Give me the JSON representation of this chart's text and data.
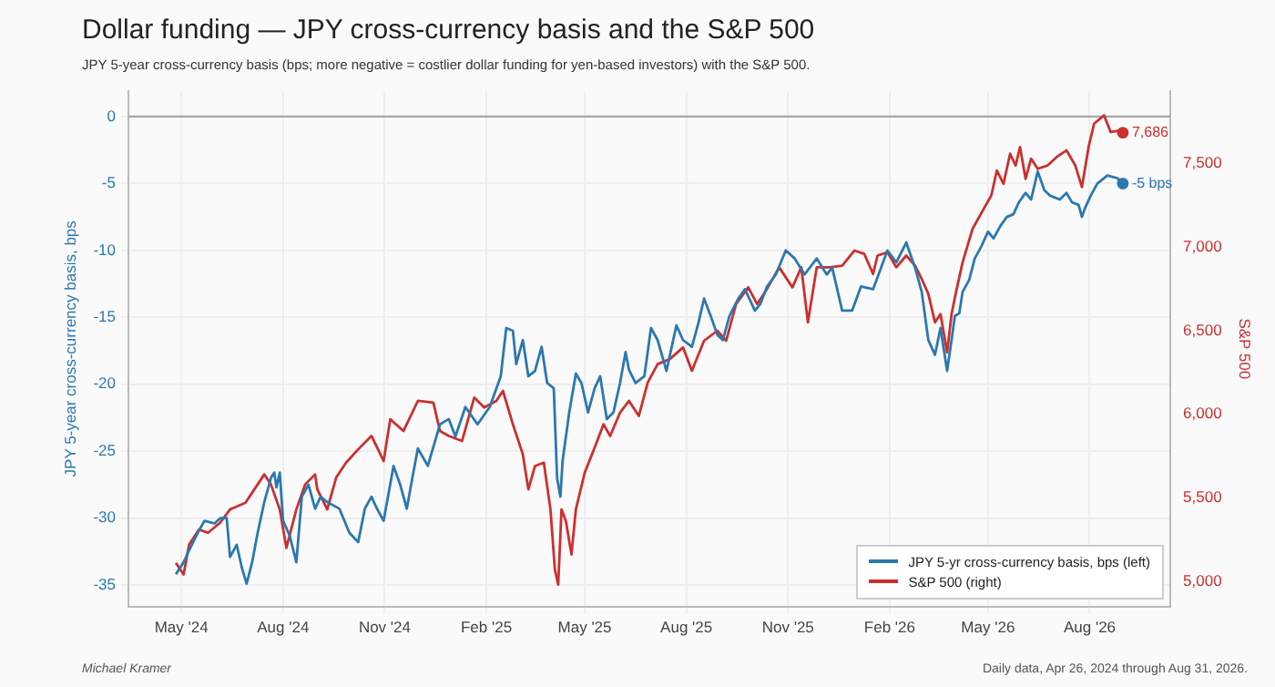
{
  "chart_data": {
    "type": "line",
    "title": "Dollar funding — JPY cross-currency basis and the S&P 500",
    "subtitle": "JPY 5-year cross-currency basis (bps; more negative = costlier dollar funding for yen-based investors) with the S&P 500.",
    "ylabel": "JPY 5-year cross-currency basis, bps",
    "y2label": "S&P 500",
    "annotations": [
      "Michael Kramer",
      "Daily data, Apr 26, 2024 through Aug 31, 2026."
    ],
    "xlim": [
      "2024-03-14",
      "2026-10-13"
    ],
    "xticks": [
      {
        "value": "2024-05-01",
        "label": "May '24"
      },
      {
        "value": "2024-08-01",
        "label": "Aug '24"
      },
      {
        "value": "2024-11-01",
        "label": "Nov '24"
      },
      {
        "value": "2025-02-01",
        "label": "Feb '25"
      },
      {
        "value": "2025-05-01",
        "label": "May '25"
      },
      {
        "value": "2025-08-01",
        "label": "Aug '25"
      },
      {
        "value": "2025-11-01",
        "label": "Nov '25"
      },
      {
        "value": "2026-02-01",
        "label": "Feb '26"
      },
      {
        "value": "2026-05-01",
        "label": "May '26"
      },
      {
        "value": "2026-08-01",
        "label": "Aug '26"
      }
    ],
    "ylim": [
      -36.6,
      1.9
    ],
    "yticks": [
      0,
      -5,
      -10,
      -15,
      -20,
      -25,
      -30,
      -35
    ],
    "y2lim": [
      4849,
      7935
    ],
    "y2ticks": [
      {
        "value": 5000,
        "label": "5,000"
      },
      {
        "value": 5500,
        "label": "5,500"
      },
      {
        "value": 6000,
        "label": "6,000"
      },
      {
        "value": 6500,
        "label": "6,500"
      },
      {
        "value": 7000,
        "label": "7,000"
      },
      {
        "value": 7500,
        "label": "7,500"
      }
    ],
    "ref_lines": [
      {
        "axis": "y",
        "value": 0,
        "color": "#a6a6a6"
      }
    ],
    "grid": true,
    "legend": "bottom right",
    "marker": "none",
    "line_style": "solid",
    "series": [
      {
        "name": "JPY 5-yr cross-currency basis, bps (left)",
        "color": "#2b78b0",
        "x": [
          "2024-04-26",
          "2024-05-03",
          "2024-05-08",
          "2024-05-17",
          "2024-05-22",
          "2024-05-31",
          "2024-06-05",
          "2024-06-11",
          "2024-06-14",
          "2024-06-20",
          "2024-06-25",
          "2024-06-29",
          "2024-07-04",
          "2024-07-09",
          "2024-07-15",
          "2024-07-21",
          "2024-07-24",
          "2024-07-26",
          "2024-07-29",
          "2024-08-01",
          "2024-08-07",
          "2024-08-13",
          "2024-08-18",
          "2024-08-24",
          "2024-08-30",
          "2024-09-04",
          "2024-09-10",
          "2024-09-21",
          "2024-09-30",
          "2024-10-08",
          "2024-10-14",
          "2024-10-20",
          "2024-10-25",
          "2024-10-31",
          "2024-11-09",
          "2024-11-15",
          "2024-11-21",
          "2024-11-26",
          "2024-12-01",
          "2024-12-10",
          "2024-12-21",
          "2024-12-29",
          "2025-01-04",
          "2025-01-13",
          "2025-01-24",
          "2025-02-04",
          "2025-02-14",
          "2025-02-19",
          "2025-02-25",
          "2025-02-28",
          "2025-03-06",
          "2025-03-11",
          "2025-03-17",
          "2025-03-23",
          "2025-03-28",
          "2025-04-03",
          "2025-04-06",
          "2025-04-09",
          "2025-04-11",
          "2025-04-17",
          "2025-04-23",
          "2025-04-28",
          "2025-05-04",
          "2025-05-10",
          "2025-05-15",
          "2025-05-21",
          "2025-05-27",
          "2025-06-02",
          "2025-06-07",
          "2025-06-10",
          "2025-06-16",
          "2025-06-24",
          "2025-06-30",
          "2025-07-06",
          "2025-07-14",
          "2025-07-23",
          "2025-07-29",
          "2025-08-06",
          "2025-08-12",
          "2025-08-17",
          "2025-08-23",
          "2025-08-29",
          "2025-09-03",
          "2025-09-09",
          "2025-09-17",
          "2025-09-23",
          "2025-10-02",
          "2025-10-07",
          "2025-10-13",
          "2025-10-21",
          "2025-10-30",
          "2025-11-07",
          "2025-11-16",
          "2025-11-27",
          "2025-12-06",
          "2025-12-11",
          "2025-12-20",
          "2025-12-29",
          "2026-01-06",
          "2026-01-17",
          "2026-01-30",
          "2026-02-07",
          "2026-02-16",
          "2026-02-24",
          "2026-03-02",
          "2026-03-08",
          "2026-03-14",
          "2026-03-19",
          "2026-03-25",
          "2026-03-29",
          "2026-04-01",
          "2026-04-05",
          "2026-04-08",
          "2026-04-14",
          "2026-04-19",
          "2026-04-25",
          "2026-05-01",
          "2026-05-06",
          "2026-05-12",
          "2026-05-18",
          "2026-05-24",
          "2026-05-29",
          "2026-06-04",
          "2026-06-09",
          "2026-06-15",
          "2026-06-21",
          "2026-06-26",
          "2026-07-05",
          "2026-07-11",
          "2026-07-16",
          "2026-07-22",
          "2026-07-25",
          "2026-07-28",
          "2026-08-02",
          "2026-08-08",
          "2026-08-17",
          "2026-08-26",
          "2026-08-31"
        ],
        "values": [
          -34.2,
          -33.3,
          -32.4,
          -30.9,
          -30.2,
          -30.4,
          -30.0,
          -30.0,
          -32.9,
          -32.0,
          -33.8,
          -34.9,
          -33.3,
          -31.1,
          -28.8,
          -27.0,
          -26.6,
          -27.7,
          -26.6,
          -30.2,
          -31.3,
          -33.3,
          -28.4,
          -27.5,
          -29.3,
          -28.4,
          -28.8,
          -29.3,
          -31.1,
          -31.8,
          -29.3,
          -28.4,
          -29.3,
          -30.2,
          -26.1,
          -27.5,
          -29.3,
          -27.0,
          -24.8,
          -26.1,
          -23.0,
          -22.6,
          -23.9,
          -21.7,
          -23.0,
          -21.7,
          -19.4,
          -15.8,
          -16.0,
          -18.5,
          -16.7,
          -19.4,
          -19.0,
          -17.2,
          -19.9,
          -20.3,
          -27.0,
          -28.4,
          -25.7,
          -22.1,
          -19.2,
          -19.9,
          -22.1,
          -20.3,
          -19.4,
          -22.6,
          -22.1,
          -19.9,
          -17.6,
          -18.9,
          -19.9,
          -19.4,
          -15.8,
          -16.7,
          -19.0,
          -15.6,
          -16.7,
          -17.2,
          -15.4,
          -13.6,
          -14.9,
          -16.3,
          -16.7,
          -14.9,
          -13.6,
          -12.9,
          -14.5,
          -14.0,
          -12.7,
          -11.8,
          -10.0,
          -10.6,
          -11.8,
          -10.6,
          -11.8,
          -11.3,
          -14.5,
          -14.5,
          -12.7,
          -12.9,
          -10.0,
          -10.9,
          -9.4,
          -11.3,
          -13.1,
          -16.7,
          -17.8,
          -15.8,
          -19.0,
          -16.7,
          -14.9,
          -14.7,
          -13.1,
          -12.2,
          -10.6,
          -9.7,
          -8.6,
          -9.1,
          -8.2,
          -7.5,
          -7.3,
          -6.4,
          -5.7,
          -6.2,
          -4.1,
          -5.5,
          -5.9,
          -6.2,
          -5.7,
          -6.4,
          -6.6,
          -7.5,
          -6.8,
          -5.9,
          -5.0,
          -4.4,
          -4.6,
          -5
        ],
        "value_labels": [
          null,
          null,
          null,
          null,
          null,
          null,
          null,
          null,
          null,
          null,
          null,
          null,
          null,
          null,
          null,
          null,
          null,
          null,
          null,
          null,
          null,
          null,
          null,
          null,
          null,
          null,
          null,
          null,
          null,
          null,
          null,
          null,
          null,
          null,
          null,
          null,
          null,
          null,
          null,
          null,
          null,
          null,
          null,
          null,
          null,
          null,
          null,
          null,
          null,
          null,
          null,
          null,
          null,
          null,
          null,
          null,
          null,
          null,
          null,
          null,
          null,
          null,
          null,
          null,
          null,
          null,
          null,
          null,
          null,
          null,
          null,
          null,
          null,
          null,
          null,
          null,
          null,
          null,
          null,
          null,
          null,
          null,
          null,
          null,
          null,
          null,
          null,
          null,
          null,
          null,
          null,
          null,
          null,
          null,
          null,
          null,
          null,
          null,
          null,
          null,
          null,
          null,
          null,
          null,
          null,
          null,
          null,
          null,
          null,
          null,
          null,
          null,
          null,
          null,
          null,
          null,
          null,
          null,
          null,
          null,
          null,
          null,
          null,
          null,
          null,
          null,
          null,
          null,
          null,
          null,
          null,
          null,
          null,
          null,
          null,
          null,
          null,
          "-5 bps"
        ]
      },
      {
        "name": "S&P 500 (right)",
        "color": "#cc2f2f",
        "axis": "y2",
        "x": [
          "2024-04-26",
          "2024-05-03",
          "2024-05-08",
          "2024-05-17",
          "2024-05-25",
          "2024-06-05",
          "2024-06-14",
          "2024-06-28",
          "2024-07-09",
          "2024-07-15",
          "2024-07-21",
          "2024-07-29",
          "2024-08-04",
          "2024-08-13",
          "2024-08-21",
          "2024-08-30",
          "2024-09-01",
          "2024-09-10",
          "2024-09-18",
          "2024-09-27",
          "2024-10-08",
          "2024-10-20",
          "2024-10-31",
          "2024-11-06",
          "2024-11-18",
          "2024-12-01",
          "2024-12-15",
          "2024-12-21",
          "2024-12-29",
          "2025-01-10",
          "2025-01-21",
          "2025-01-30",
          "2025-02-10",
          "2025-02-16",
          "2025-02-25",
          "2025-03-06",
          "2025-03-11",
          "2025-03-17",
          "2025-03-25",
          "2025-03-31",
          "2025-04-04",
          "2025-04-07",
          "2025-04-10",
          "2025-04-14",
          "2025-04-19",
          "2025-04-23",
          "2025-05-01",
          "2025-05-10",
          "2025-05-18",
          "2025-05-24",
          "2025-06-02",
          "2025-06-10",
          "2025-06-19",
          "2025-06-27",
          "2025-07-06",
          "2025-07-17",
          "2025-07-29",
          "2025-08-06",
          "2025-08-17",
          "2025-08-29",
          "2025-09-06",
          "2025-09-15",
          "2025-09-26",
          "2025-10-04",
          "2025-10-13",
          "2025-10-24",
          "2025-11-05",
          "2025-11-13",
          "2025-11-19",
          "2025-11-27",
          "2025-12-09",
          "2025-12-20",
          "2025-12-31",
          "2026-01-09",
          "2026-01-17",
          "2026-01-21",
          "2026-01-30",
          "2026-02-07",
          "2026-02-16",
          "2026-02-24",
          "2026-03-02",
          "2026-03-08",
          "2026-03-14",
          "2026-03-19",
          "2026-03-25",
          "2026-03-29",
          "2026-04-02",
          "2026-04-08",
          "2026-04-17",
          "2026-04-22",
          "2026-04-28",
          "2026-05-04",
          "2026-05-09",
          "2026-05-15",
          "2026-05-21",
          "2026-05-26",
          "2026-05-30",
          "2026-06-04",
          "2026-06-09",
          "2026-06-15",
          "2026-06-24",
          "2026-07-02",
          "2026-07-11",
          "2026-07-19",
          "2026-07-25",
          "2026-07-31",
          "2026-08-05",
          "2026-08-14",
          "2026-08-20",
          "2026-08-29",
          "2026-08-31"
        ],
        "values": [
          5110,
          5040,
          5220,
          5310,
          5290,
          5350,
          5430,
          5470,
          5580,
          5640,
          5580,
          5430,
          5200,
          5430,
          5580,
          5640,
          5550,
          5430,
          5620,
          5710,
          5790,
          5870,
          5720,
          5970,
          5900,
          6080,
          6070,
          5900,
          5870,
          5840,
          6100,
          6040,
          6080,
          6140,
          5940,
          5760,
          5550,
          5690,
          5710,
          5430,
          5070,
          4980,
          5430,
          5360,
          5160,
          5430,
          5650,
          5800,
          5940,
          5870,
          6010,
          6080,
          5990,
          6190,
          6300,
          6330,
          6400,
          6260,
          6440,
          6500,
          6440,
          6660,
          6760,
          6660,
          6750,
          6880,
          6760,
          6880,
          6550,
          6880,
          6880,
          6890,
          6980,
          6960,
          6840,
          6950,
          6970,
          6880,
          6950,
          6890,
          6810,
          6720,
          6550,
          6600,
          6370,
          6600,
          6730,
          6910,
          7110,
          7170,
          7240,
          7310,
          7460,
          7380,
          7560,
          7490,
          7600,
          7410,
          7530,
          7470,
          7490,
          7540,
          7580,
          7490,
          7360,
          7600,
          7740,
          7790,
          7690,
          7700,
          7686
        ],
        "value_labels": [
          null,
          null,
          null,
          null,
          null,
          null,
          null,
          null,
          null,
          null,
          null,
          null,
          null,
          null,
          null,
          null,
          null,
          null,
          null,
          null,
          null,
          null,
          null,
          null,
          null,
          null,
          null,
          null,
          null,
          null,
          null,
          null,
          null,
          null,
          null,
          null,
          null,
          null,
          null,
          null,
          null,
          null,
          null,
          null,
          null,
          null,
          null,
          null,
          null,
          null,
          null,
          null,
          null,
          null,
          null,
          null,
          null,
          null,
          null,
          null,
          null,
          null,
          null,
          null,
          null,
          null,
          null,
          null,
          null,
          null,
          null,
          null,
          null,
          null,
          null,
          null,
          null,
          null,
          null,
          null,
          null,
          null,
          null,
          null,
          null,
          null,
          null,
          null,
          null,
          null,
          null,
          null,
          null,
          null,
          null,
          null,
          null,
          null,
          null,
          null,
          null,
          null,
          null,
          null,
          null,
          null,
          null,
          null,
          null,
          null,
          "7,686"
        ]
      }
    ]
  }
}
